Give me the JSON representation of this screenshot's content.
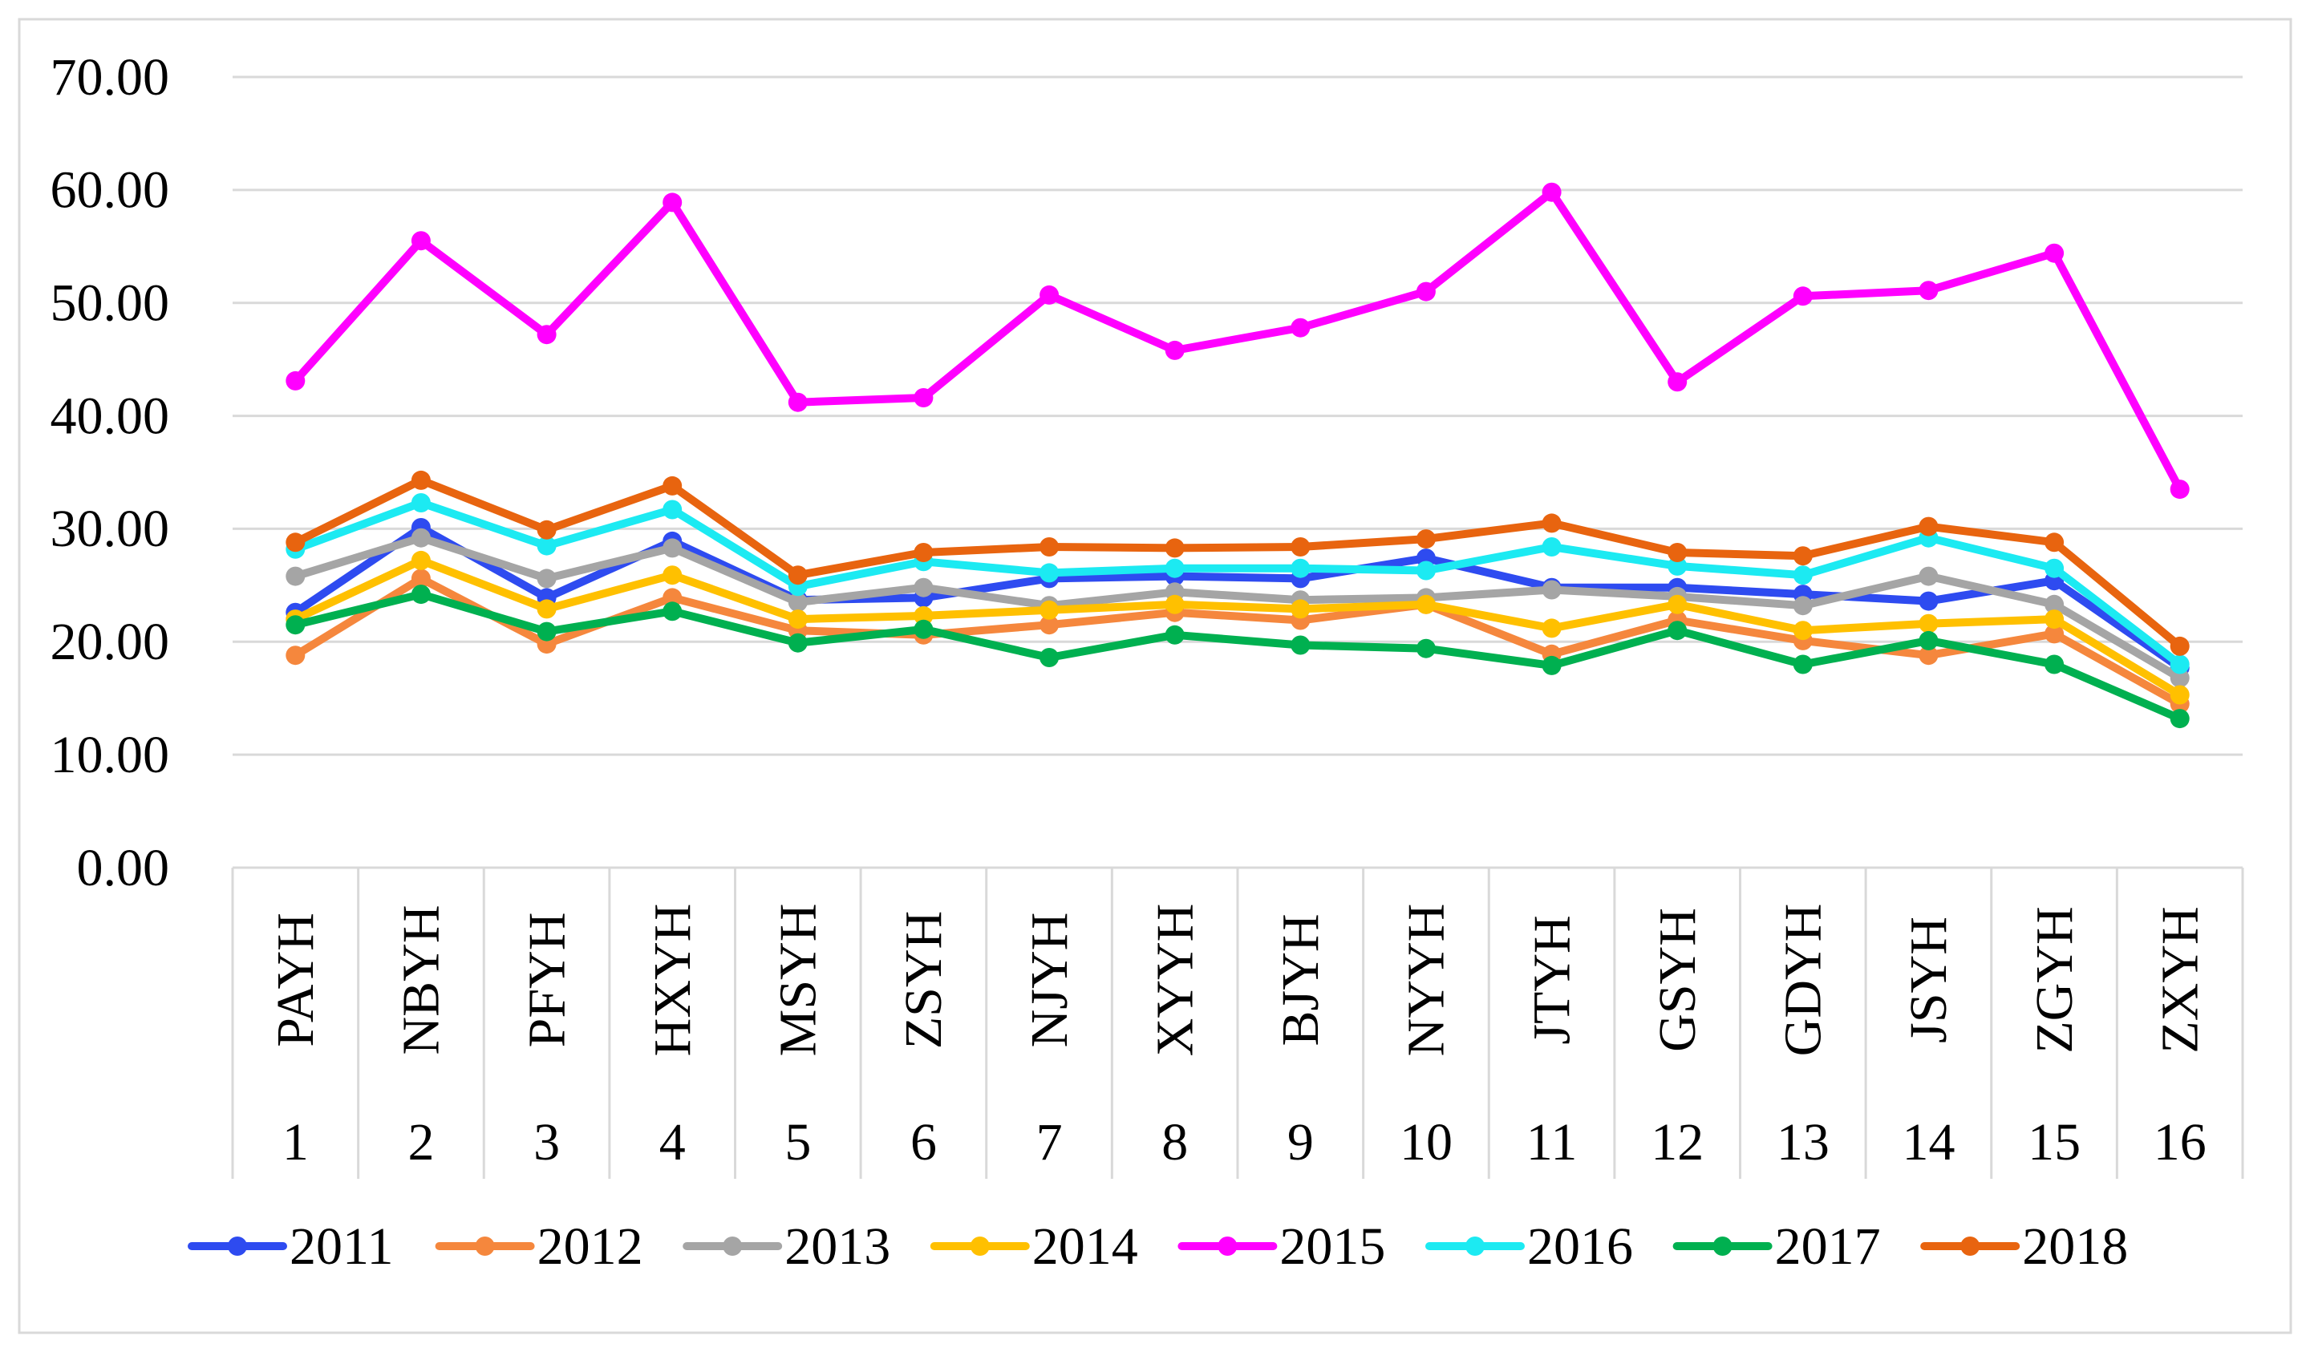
{
  "chart_data": {
    "type": "line",
    "legend": "bottom",
    "grid": true,
    "ylim": [
      0,
      70
    ],
    "y_tick_values": [
      0,
      10,
      20,
      30,
      40,
      50,
      60,
      70
    ],
    "y_ticks": [
      "0.00",
      "10.00",
      "20.00",
      "30.00",
      "40.00",
      "50.00",
      "60.00",
      "70.00"
    ],
    "categories": [
      "PAYH",
      "NBYH",
      "PFYH",
      "HXYH",
      "MSYH",
      "ZSYH",
      "NJYH",
      "XYYH",
      "BJYH",
      "NYYH",
      "JTYH",
      "GSYH",
      "GDYH",
      "JSYH",
      "ZGYH",
      "ZXYH"
    ],
    "category_numbers": [
      "1",
      "2",
      "3",
      "4",
      "5",
      "6",
      "7",
      "8",
      "9",
      "10",
      "11",
      "12",
      "13",
      "14",
      "15",
      "16"
    ],
    "series": [
      {
        "name": "2011",
        "color": "#2E4BF0",
        "values": [
          22.6,
          30.1,
          23.9,
          28.9,
          23.7,
          23.9,
          25.6,
          25.8,
          25.6,
          27.4,
          24.8,
          24.8,
          24.2,
          23.6,
          25.4,
          17.7
        ]
      },
      {
        "name": "2012",
        "color": "#F5873D",
        "values": [
          18.8,
          25.6,
          19.8,
          23.9,
          21.0,
          20.6,
          21.5,
          22.6,
          21.9,
          23.3,
          18.9,
          21.9,
          20.1,
          18.8,
          20.7,
          14.5
        ]
      },
      {
        "name": "2013",
        "color": "#A5A5A5",
        "values": [
          25.8,
          29.2,
          25.6,
          28.3,
          23.5,
          24.8,
          23.2,
          24.4,
          23.7,
          23.9,
          24.6,
          24.0,
          23.2,
          25.8,
          23.3,
          16.8
        ]
      },
      {
        "name": "2014",
        "color": "#FFC000",
        "values": [
          22.0,
          27.2,
          22.9,
          25.9,
          22.0,
          22.3,
          22.8,
          23.3,
          22.9,
          23.3,
          21.2,
          23.3,
          21.0,
          21.6,
          22.0,
          15.3
        ]
      },
      {
        "name": "2015",
        "color": "#FF00FF",
        "values": [
          43.1,
          55.5,
          47.2,
          58.9,
          41.2,
          41.6,
          50.7,
          45.8,
          47.8,
          51.0,
          59.8,
          43.0,
          50.6,
          51.1,
          54.4,
          33.5
        ]
      },
      {
        "name": "2016",
        "color": "#1CEAF2",
        "values": [
          28.2,
          32.3,
          28.5,
          31.7,
          24.9,
          27.1,
          26.1,
          26.5,
          26.5,
          26.3,
          28.4,
          26.7,
          25.9,
          29.2,
          26.5,
          18.0
        ]
      },
      {
        "name": "2017",
        "color": "#00B050",
        "values": [
          21.5,
          24.2,
          20.9,
          22.7,
          19.9,
          21.1,
          18.6,
          20.6,
          19.7,
          19.4,
          17.9,
          21.0,
          18.0,
          20.1,
          18.0,
          13.2
        ]
      },
      {
        "name": "2018",
        "color": "#E8640F",
        "values": [
          28.8,
          34.3,
          29.9,
          33.8,
          25.9,
          27.9,
          28.4,
          28.3,
          28.4,
          29.1,
          30.5,
          27.9,
          27.6,
          30.2,
          28.8,
          19.6
        ]
      }
    ]
  }
}
